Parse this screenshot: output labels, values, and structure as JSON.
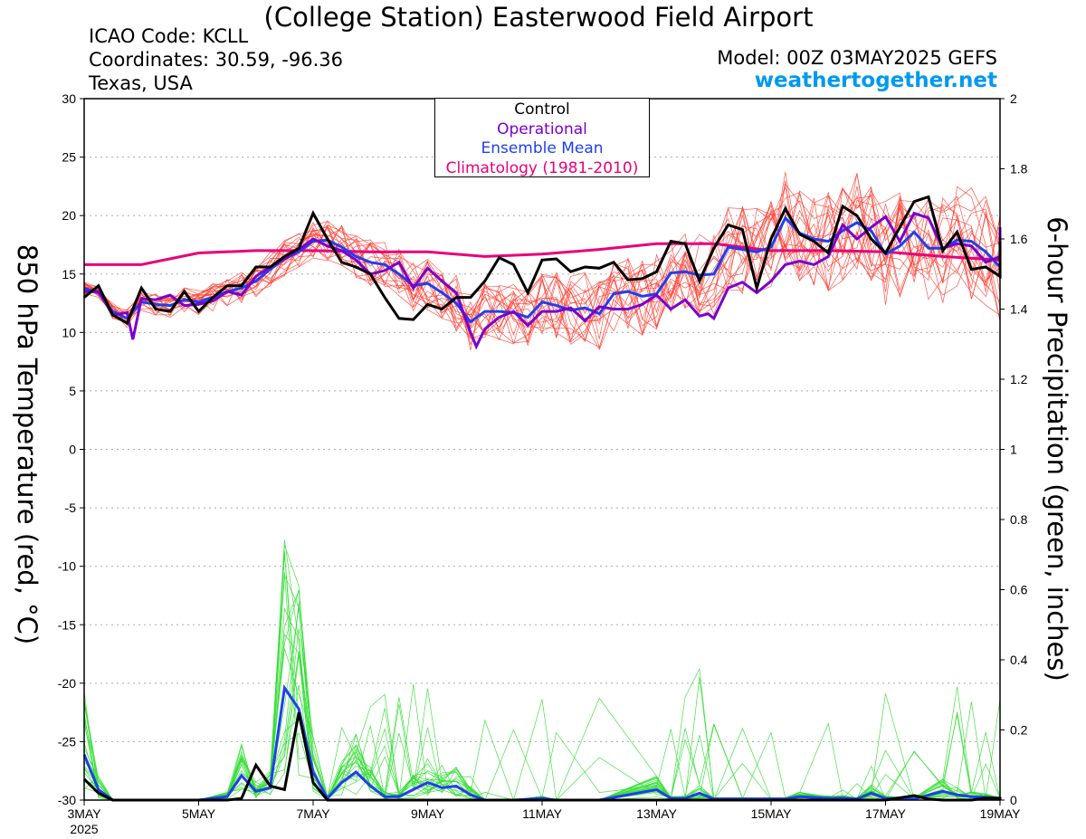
{
  "header": {
    "title": "(College Station) Easterwood Field Airport",
    "icao": "ICAO Code: KCLL",
    "coords": "Coordinates: 30.59, -96.36",
    "region": "Texas, USA",
    "model": "Model: 00Z 03MAY2025 GEFS",
    "site": "weathertogether.net"
  },
  "colors": {
    "members_temp": "#ff3b2f",
    "members_precip": "#33dd33",
    "control": "#000000",
    "operational": "#7a00cc",
    "ensemble_mean": "#1f3ff0",
    "climatology": "#e8007a",
    "site": "#0099ee"
  },
  "chart_data": {
    "type": "line",
    "ylabel_left": "850 hPa Temperature (red, °C)",
    "ylabel_right": "6-hour Precipitation (green, inches)",
    "ylim_left": [
      -30,
      30
    ],
    "ylim_right": [
      0,
      2
    ],
    "yticks_left": [
      "30",
      "25",
      "20",
      "15",
      "10",
      "5",
      "0",
      "-5",
      "-10",
      "-15",
      "-20",
      "-25",
      "-30"
    ],
    "yticks_right": [
      "2",
      "1.8",
      "1.6",
      "1.4",
      "1.2",
      "1",
      "0.8",
      "0.6",
      "0.4",
      "0.2",
      "0"
    ],
    "x_range_days": [
      0,
      16
    ],
    "xticks": [
      {
        "day": 0,
        "label": "3MAY",
        "sub": "2025"
      },
      {
        "day": 2,
        "label": "5MAY"
      },
      {
        "day": 4,
        "label": "7MAY"
      },
      {
        "day": 6,
        "label": "9MAY"
      },
      {
        "day": 8,
        "label": "11MAY"
      },
      {
        "day": 10,
        "label": "13MAY"
      },
      {
        "day": 12,
        "label": "15MAY"
      },
      {
        "day": 14,
        "label": "17MAY"
      },
      {
        "day": 16,
        "label": "19MAY"
      }
    ],
    "grid": true,
    "legend": [
      "Control",
      "Operational",
      "Ensemble Mean",
      "Climatology (1981-2010)"
    ],
    "temperature": {
      "control": [
        [
          0,
          13.0
        ],
        [
          0.25,
          14.0
        ],
        [
          0.5,
          11.5
        ],
        [
          0.75,
          10.8
        ],
        [
          1,
          13.8
        ],
        [
          1.25,
          12.0
        ],
        [
          1.5,
          11.8
        ],
        [
          1.75,
          13.5
        ],
        [
          2,
          11.8
        ],
        [
          2.25,
          13.0
        ],
        [
          2.5,
          14.0
        ],
        [
          2.75,
          14.0
        ],
        [
          3,
          15.6
        ],
        [
          3.25,
          15.6
        ],
        [
          3.5,
          16.5
        ],
        [
          3.75,
          17.2
        ],
        [
          4,
          20.2
        ],
        [
          4.25,
          18.0
        ],
        [
          4.5,
          16.0
        ],
        [
          4.75,
          15.6
        ],
        [
          5,
          15.0
        ],
        [
          5.25,
          13.0
        ],
        [
          5.5,
          11.2
        ],
        [
          5.75,
          11.1
        ],
        [
          6,
          12.4
        ],
        [
          6.25,
          12.0
        ],
        [
          6.5,
          13.0
        ],
        [
          6.75,
          13.0
        ],
        [
          7,
          14.4
        ],
        [
          7.25,
          16.4
        ],
        [
          7.5,
          15.8
        ],
        [
          7.75,
          13.4
        ],
        [
          8,
          16.2
        ],
        [
          8.25,
          16.3
        ],
        [
          8.5,
          15.2
        ],
        [
          8.75,
          15.6
        ],
        [
          9,
          15.5
        ],
        [
          9.25,
          16.0
        ],
        [
          9.5,
          14.5
        ],
        [
          9.75,
          14.6
        ],
        [
          10,
          15.2
        ],
        [
          10.25,
          17.8
        ],
        [
          10.5,
          17.6
        ],
        [
          10.75,
          14.4
        ],
        [
          11,
          17.2
        ],
        [
          11.25,
          19.2
        ],
        [
          11.5,
          18.8
        ],
        [
          11.75,
          13.8
        ],
        [
          12,
          18.0
        ],
        [
          12.25,
          20.6
        ],
        [
          12.5,
          18.4
        ],
        [
          12.75,
          17.8
        ],
        [
          13,
          16.8
        ],
        [
          13.25,
          20.8
        ],
        [
          13.5,
          20.0
        ],
        [
          13.75,
          18.0
        ],
        [
          14,
          16.8
        ],
        [
          14.25,
          19.0
        ],
        [
          14.5,
          21.2
        ],
        [
          14.75,
          21.6
        ],
        [
          15,
          17.0
        ],
        [
          15.25,
          18.6
        ],
        [
          15.5,
          15.4
        ],
        [
          15.75,
          15.6
        ],
        [
          16,
          14.8
        ],
        [
          16.25,
          17.8
        ]
      ],
      "operational": [
        [
          0,
          13.5
        ],
        [
          0.25,
          13.5
        ],
        [
          0.5,
          11.5
        ],
        [
          0.75,
          11.7
        ],
        [
          0.85,
          9.4
        ],
        [
          1,
          12.9
        ],
        [
          1.25,
          12.8
        ],
        [
          1.5,
          13.2
        ],
        [
          1.75,
          12.3
        ],
        [
          2,
          12.4
        ],
        [
          2.25,
          12.7
        ],
        [
          2.5,
          13.5
        ],
        [
          2.75,
          13.2
        ],
        [
          3,
          14.8
        ],
        [
          3.25,
          15.6
        ],
        [
          3.5,
          16.3
        ],
        [
          3.75,
          17.1
        ],
        [
          4,
          18.0
        ],
        [
          4.25,
          17.4
        ],
        [
          4.5,
          17.0
        ],
        [
          4.75,
          16.2
        ],
        [
          5,
          15.0
        ],
        [
          5.25,
          15.3
        ],
        [
          5.5,
          16.0
        ],
        [
          5.75,
          13.8
        ],
        [
          6,
          15.5
        ],
        [
          6.25,
          14.4
        ],
        [
          6.5,
          13.4
        ],
        [
          6.75,
          10.0
        ],
        [
          6.85,
          8.8
        ],
        [
          7,
          10.3
        ],
        [
          7.25,
          11.3
        ],
        [
          7.5,
          11.8
        ],
        [
          7.75,
          10.6
        ],
        [
          8,
          11.8
        ],
        [
          8.25,
          11.8
        ],
        [
          8.5,
          12.1
        ],
        [
          8.75,
          11.0
        ],
        [
          9,
          12.2
        ],
        [
          9.25,
          12.0
        ],
        [
          9.5,
          12.0
        ],
        [
          9.75,
          12.4
        ],
        [
          10,
          13.2
        ],
        [
          10.25,
          12.0
        ],
        [
          10.5,
          12.8
        ],
        [
          10.75,
          11.4
        ],
        [
          10.9,
          11.6
        ],
        [
          11,
          11.2
        ],
        [
          11.25,
          13.8
        ],
        [
          11.5,
          14.3
        ],
        [
          11.75,
          13.4
        ],
        [
          12,
          14.4
        ],
        [
          12.25,
          15.8
        ],
        [
          12.5,
          16.1
        ],
        [
          12.75,
          15.8
        ],
        [
          13,
          16.5
        ],
        [
          13.25,
          19.2
        ],
        [
          13.5,
          18.0
        ],
        [
          13.75,
          19.0
        ],
        [
          14,
          19.9
        ],
        [
          14.25,
          17.8
        ],
        [
          14.5,
          20.2
        ],
        [
          14.75,
          19.8
        ],
        [
          15,
          17.2
        ],
        [
          15.25,
          17.6
        ],
        [
          15.5,
          17.4
        ],
        [
          15.75,
          16.0
        ],
        [
          16,
          16.5
        ],
        [
          16.25,
          19.0
        ]
      ],
      "ensemble_mean": [
        [
          0,
          13.8
        ],
        [
          0.25,
          13.4
        ],
        [
          0.5,
          11.8
        ],
        [
          0.75,
          11.2
        ],
        [
          1,
          12.6
        ],
        [
          1.25,
          12.4
        ],
        [
          1.5,
          12.3
        ],
        [
          1.75,
          12.8
        ],
        [
          2,
          12.6
        ],
        [
          2.25,
          13.0
        ],
        [
          2.5,
          13.5
        ],
        [
          2.75,
          13.8
        ],
        [
          3,
          14.4
        ],
        [
          3.25,
          15.4
        ],
        [
          3.5,
          16.3
        ],
        [
          3.75,
          16.9
        ],
        [
          4,
          17.8
        ],
        [
          4.25,
          17.9
        ],
        [
          4.5,
          17.3
        ],
        [
          4.75,
          16.5
        ],
        [
          5,
          16.0
        ],
        [
          5.25,
          15.8
        ],
        [
          5.5,
          15.0
        ],
        [
          5.75,
          14.0
        ],
        [
          6,
          14.2
        ],
        [
          6.25,
          13.4
        ],
        [
          6.5,
          12.5
        ],
        [
          6.75,
          10.9
        ],
        [
          7,
          11.8
        ],
        [
          7.25,
          11.8
        ],
        [
          7.5,
          11.7
        ],
        [
          7.75,
          11.3
        ],
        [
          8,
          12.6
        ],
        [
          8.25,
          12.3
        ],
        [
          8.5,
          11.9
        ],
        [
          8.75,
          12.1
        ],
        [
          9,
          11.6
        ],
        [
          9.25,
          13.3
        ],
        [
          9.5,
          13.5
        ],
        [
          9.75,
          13.1
        ],
        [
          10,
          13.3
        ],
        [
          10.25,
          15.1
        ],
        [
          10.5,
          15.2
        ],
        [
          10.75,
          14.9
        ],
        [
          11,
          15.0
        ],
        [
          11.25,
          17.3
        ],
        [
          11.5,
          17.1
        ],
        [
          11.75,
          16.9
        ],
        [
          12,
          17.3
        ],
        [
          12.25,
          19.8
        ],
        [
          12.5,
          18.5
        ],
        [
          12.75,
          18.0
        ],
        [
          13,
          17.8
        ],
        [
          13.25,
          18.7
        ],
        [
          13.5,
          19.4
        ],
        [
          13.75,
          18.7
        ],
        [
          14,
          16.7
        ],
        [
          14.25,
          17.4
        ],
        [
          14.5,
          18.6
        ],
        [
          14.75,
          17.2
        ],
        [
          15,
          17.2
        ],
        [
          15.25,
          17.9
        ],
        [
          15.5,
          17.8
        ],
        [
          15.75,
          16.9
        ],
        [
          16,
          15.6
        ],
        [
          16.25,
          18.2
        ]
      ],
      "climatology": [
        [
          0,
          15.8
        ],
        [
          1,
          15.8
        ],
        [
          2,
          16.8
        ],
        [
          3,
          17.0
        ],
        [
          4,
          17.0
        ],
        [
          5,
          16.9
        ],
        [
          6,
          16.9
        ],
        [
          7,
          16.5
        ],
        [
          8,
          16.7
        ],
        [
          9,
          17.1
        ],
        [
          10,
          17.6
        ],
        [
          11,
          17.6
        ],
        [
          12,
          17.0
        ],
        [
          13,
          17.0
        ],
        [
          14,
          16.9
        ],
        [
          15,
          16.5
        ],
        [
          16.25,
          16.2
        ]
      ]
    },
    "precipitation": {
      "control": [
        [
          0,
          0.06
        ],
        [
          0.25,
          0.02
        ],
        [
          0.5,
          0
        ],
        [
          1,
          0
        ],
        [
          2,
          0
        ],
        [
          2.5,
          0
        ],
        [
          2.75,
          0.005
        ],
        [
          3,
          0.1
        ],
        [
          3.25,
          0.04
        ],
        [
          3.5,
          0.03
        ],
        [
          3.75,
          0.25
        ],
        [
          4,
          0.05
        ],
        [
          4.25,
          0
        ],
        [
          5,
          0
        ],
        [
          6,
          0
        ],
        [
          7,
          0
        ],
        [
          8,
          0
        ],
        [
          9,
          0
        ],
        [
          10,
          0
        ],
        [
          11,
          0
        ],
        [
          12,
          0
        ],
        [
          13,
          0
        ],
        [
          14,
          0
        ],
        [
          14.5,
          0.013
        ],
        [
          14.75,
          0.003
        ],
        [
          15,
          0
        ],
        [
          15.5,
          0
        ],
        [
          15.75,
          0.006
        ],
        [
          16,
          0.005
        ],
        [
          16.25,
          0
        ]
      ],
      "ensemble_mean": [
        [
          0,
          0.13
        ],
        [
          0.25,
          0.03
        ],
        [
          0.5,
          0
        ],
        [
          1,
          0
        ],
        [
          2,
          0
        ],
        [
          2.5,
          0.01
        ],
        [
          2.75,
          0.07
        ],
        [
          3,
          0.025
        ],
        [
          3.25,
          0.035
        ],
        [
          3.5,
          0.32
        ],
        [
          3.75,
          0.26
        ],
        [
          4,
          0.08
        ],
        [
          4.25,
          0.005
        ],
        [
          4.5,
          0.05
        ],
        [
          4.75,
          0.08
        ],
        [
          5,
          0.04
        ],
        [
          5.25,
          0.01
        ],
        [
          5.5,
          0.01
        ],
        [
          5.75,
          0.03
        ],
        [
          6,
          0.05
        ],
        [
          6.25,
          0.035
        ],
        [
          6.5,
          0.04
        ],
        [
          6.75,
          0.015
        ],
        [
          7,
          0
        ],
        [
          7.5,
          0
        ],
        [
          8,
          0.005
        ],
        [
          8.25,
          0
        ],
        [
          9,
          0
        ],
        [
          10,
          0.03
        ],
        [
          10.25,
          0.005
        ],
        [
          10.5,
          0.005
        ],
        [
          10.75,
          0.02
        ],
        [
          11,
          0.003
        ],
        [
          11.5,
          0.003
        ],
        [
          12,
          0.003
        ],
        [
          12.25,
          0.003
        ],
        [
          12.5,
          0.01
        ],
        [
          13,
          0.005
        ],
        [
          13.25,
          0.006
        ],
        [
          13.5,
          0.003
        ],
        [
          13.75,
          0.02
        ],
        [
          14,
          0.005
        ],
        [
          14.5,
          0.003
        ],
        [
          15,
          0.025
        ],
        [
          15.25,
          0.015
        ],
        [
          15.5,
          0.01
        ],
        [
          15.75,
          0.008
        ],
        [
          16,
          0.005
        ],
        [
          16.25,
          0
        ]
      ]
    }
  }
}
